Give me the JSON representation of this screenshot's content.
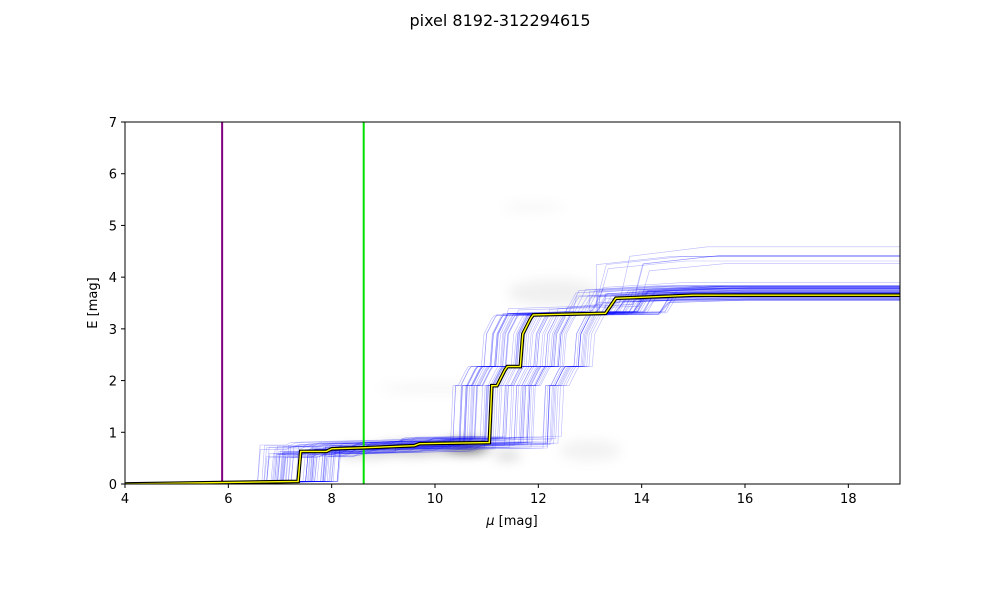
{
  "chart_data": {
    "type": "line",
    "title": "pixel 8192-312294615",
    "xlabel_symbol": "μ",
    "xlabel_unit": " [mag]",
    "ylabel": "E [mag]",
    "xlim": [
      4,
      19
    ],
    "ylim": [
      0,
      7
    ],
    "xticks": [
      4,
      6,
      8,
      10,
      12,
      14,
      16,
      18
    ],
    "yticks": [
      0,
      1,
      2,
      3,
      4,
      5,
      6,
      7
    ],
    "grid": false,
    "colors": {
      "sample_lines": "#0000ff",
      "best_fit_outer": "#000000",
      "best_fit_inner": "#ffff00",
      "vline_left": "#800080",
      "vline_right": "#00e000",
      "density": "#000000"
    },
    "vertical_lines": [
      {
        "x": 5.88,
        "color": "#800080"
      },
      {
        "x": 8.62,
        "color": "#00e000"
      }
    ],
    "best_fit": {
      "x": [
        4.0,
        7.35,
        7.4,
        7.9,
        8.0,
        8.6,
        9.6,
        9.7,
        11.05,
        11.1,
        11.2,
        11.35,
        11.4,
        11.65,
        11.7,
        11.85,
        11.9,
        13.3,
        13.5,
        15.0,
        19.0
      ],
      "y": [
        0.0,
        0.05,
        0.63,
        0.63,
        0.68,
        0.7,
        0.74,
        0.78,
        0.8,
        1.9,
        1.9,
        2.2,
        2.27,
        2.27,
        2.9,
        3.2,
        3.27,
        3.3,
        3.59,
        3.65,
        3.65
      ]
    },
    "sample_count": 70,
    "density_blobs": [
      {
        "x": 10.6,
        "y": 0.72,
        "sx": 0.45,
        "sy": 0.09,
        "a": 0.75
      },
      {
        "x": 9.6,
        "y": 0.68,
        "sx": 0.7,
        "sy": 0.08,
        "a": 0.35
      },
      {
        "x": 8.6,
        "y": 0.62,
        "sx": 0.5,
        "sy": 0.07,
        "a": 0.25
      },
      {
        "x": 11.4,
        "y": 0.55,
        "sx": 0.25,
        "sy": 0.06,
        "a": 0.25
      },
      {
        "x": 10.1,
        "y": 1.85,
        "sx": 1.2,
        "sy": 0.04,
        "a": 0.06
      },
      {
        "x": 12.3,
        "y": 3.7,
        "sx": 0.9,
        "sy": 0.25,
        "a": 0.06
      },
      {
        "x": 11.9,
        "y": 5.35,
        "sx": 0.6,
        "sy": 0.05,
        "a": 0.05
      },
      {
        "x": 13.0,
        "y": 0.65,
        "sx": 0.6,
        "sy": 0.2,
        "a": 0.05
      }
    ]
  }
}
